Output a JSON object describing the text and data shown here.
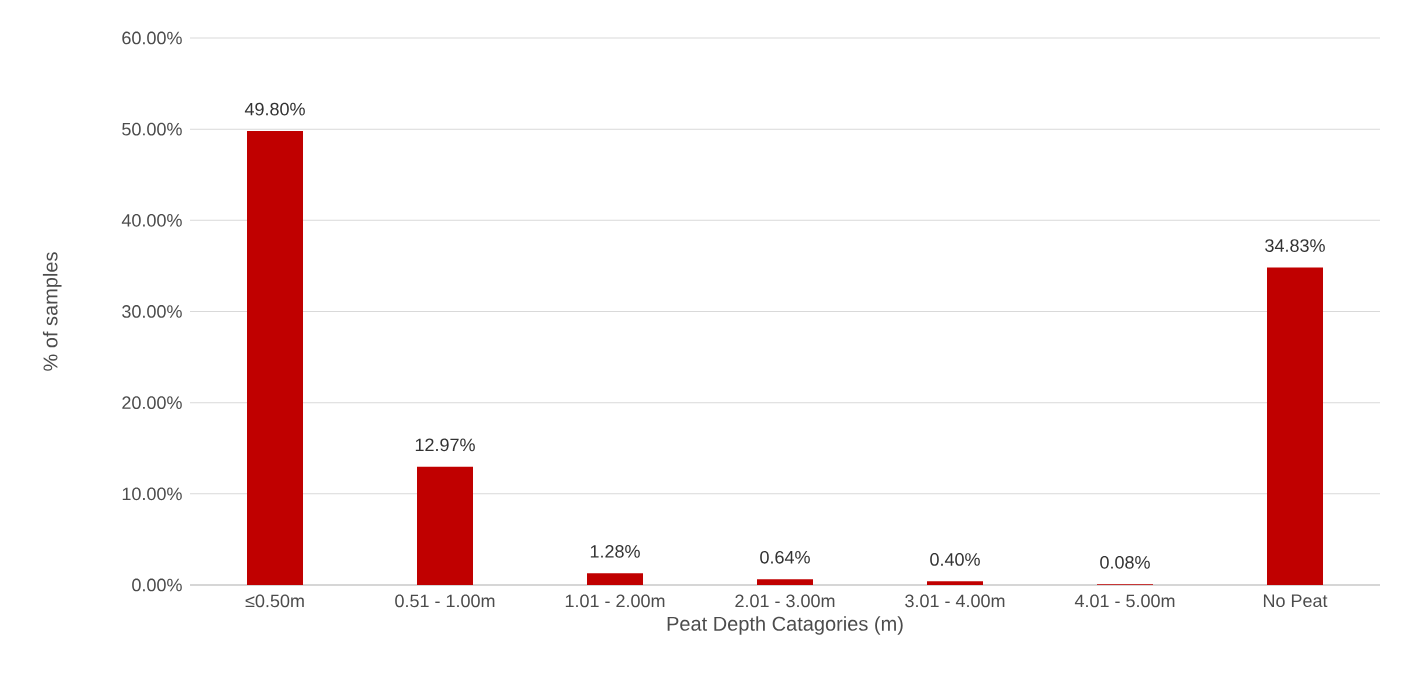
{
  "chart_data": {
    "type": "bar",
    "xlabel": "Peat Depth Catagories (m)",
    "ylabel": "% of samples",
    "categories": [
      "≤0.50m",
      "0.51 - 1.00m",
      "1.01 - 2.00m",
      "2.01 - 3.00m",
      "3.01 - 4.00m",
      "4.01 - 5.00m",
      "No Peat"
    ],
    "values": [
      49.8,
      12.97,
      1.28,
      0.64,
      0.4,
      0.08,
      34.83
    ],
    "value_labels": [
      "49.80%",
      "12.97%",
      "1.28%",
      "0.64%",
      "0.40%",
      "0.08%",
      "34.83%"
    ],
    "color": "#c00000",
    "ylim": [
      0,
      60
    ],
    "yticks": [
      {
        "value": 0,
        "label": "0.00%"
      },
      {
        "value": 10,
        "label": "10.00%"
      },
      {
        "value": 20,
        "label": "20.00%"
      },
      {
        "value": 30,
        "label": "30.00%"
      },
      {
        "value": 40,
        "label": "40.00%"
      },
      {
        "value": 50,
        "label": "50.00%"
      },
      {
        "value": 60,
        "label": "60.00%"
      }
    ],
    "grid": "y"
  }
}
